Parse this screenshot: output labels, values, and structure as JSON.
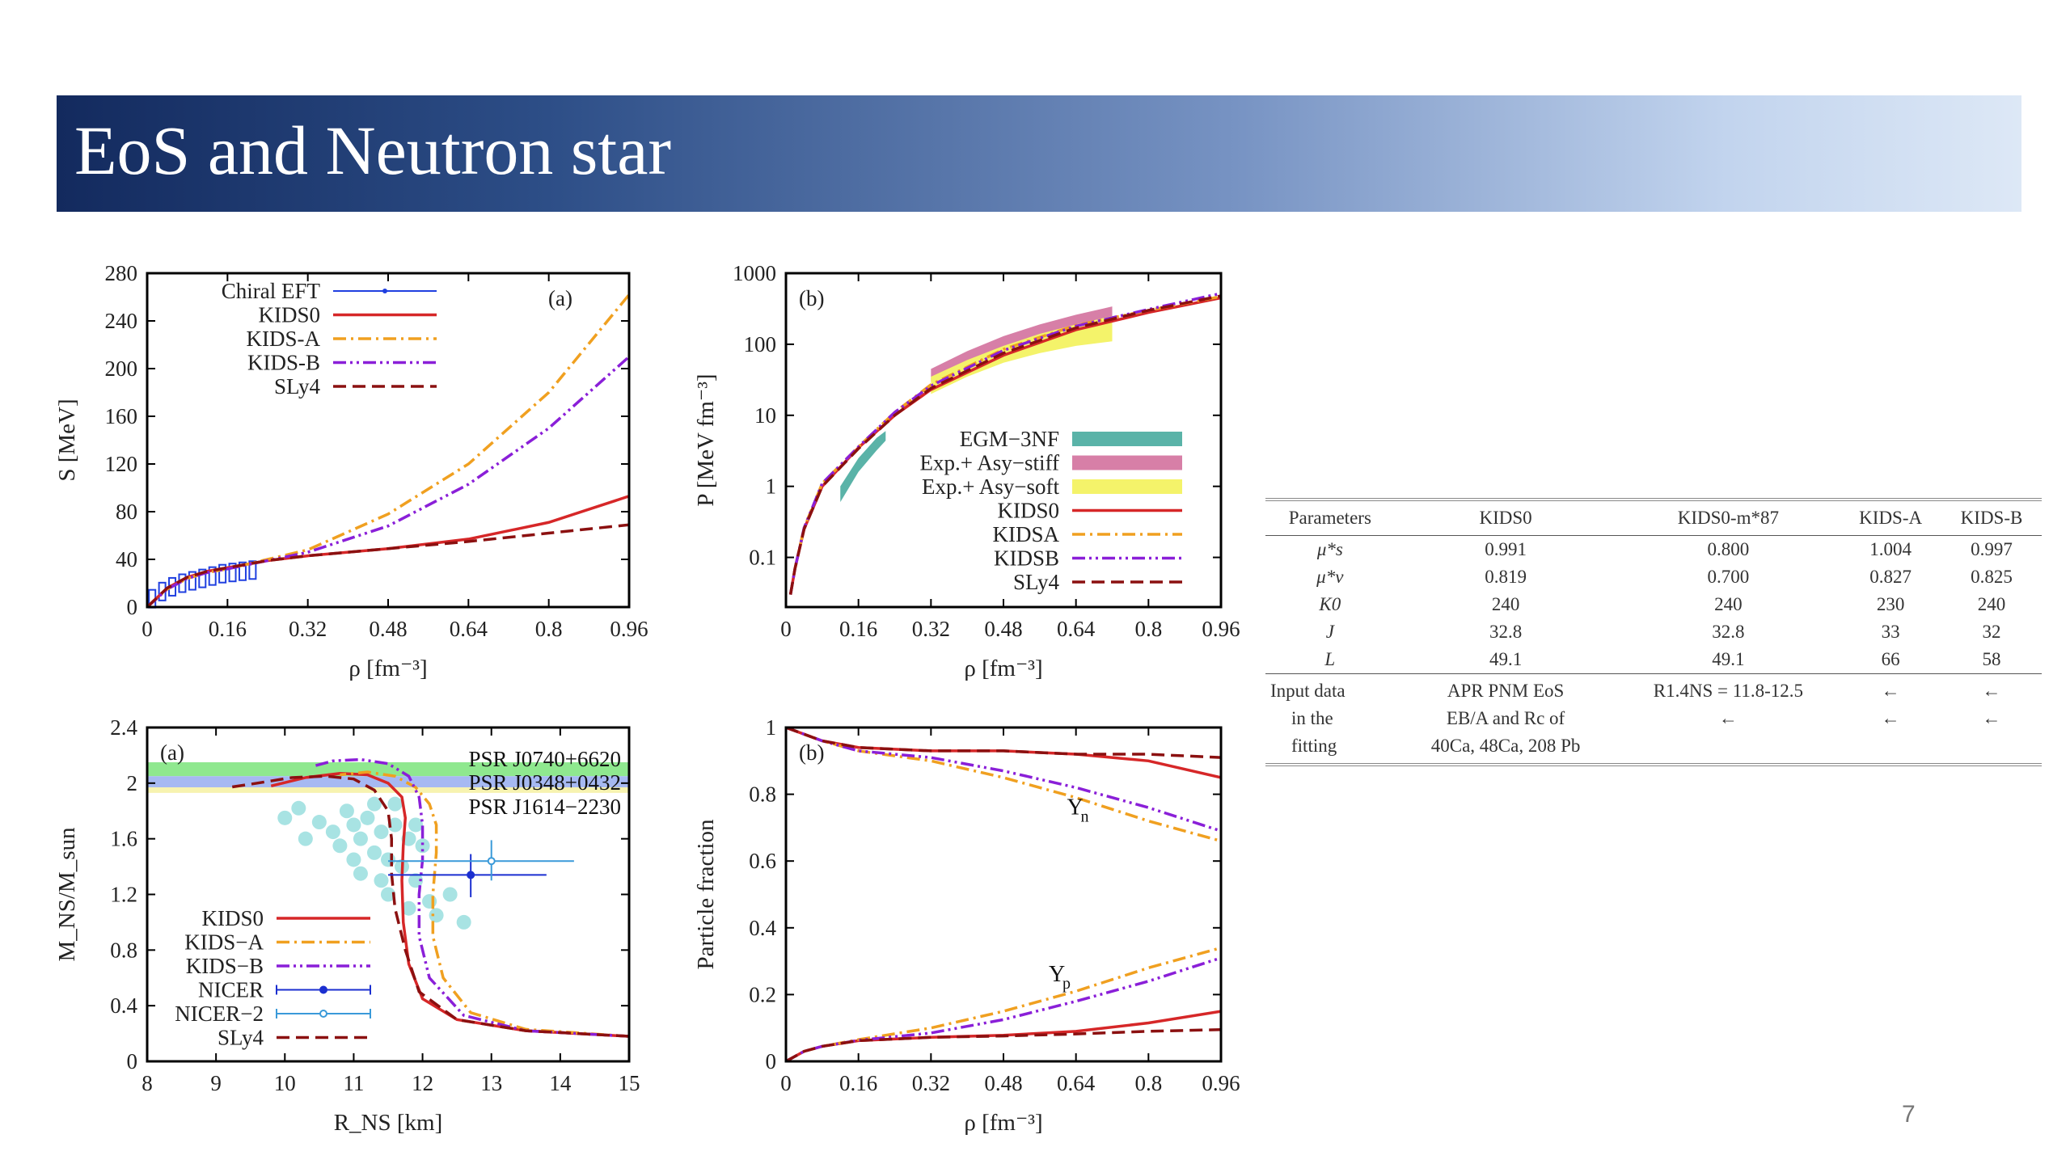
{
  "slide": {
    "title": "EoS and Neutron star",
    "page_number": "7"
  },
  "chart_data": [
    {
      "id": "symmetry-energy",
      "type": "line",
      "panel_label": "(a)",
      "xlabel": "ρ [fm⁻³]",
      "ylabel": "S [MeV]",
      "xlim": [
        0,
        0.96
      ],
      "ylim": [
        0,
        280
      ],
      "xticks": [
        0,
        0.16,
        0.32,
        0.48,
        0.64,
        0.8,
        0.96
      ],
      "yticks": [
        0,
        40,
        80,
        120,
        160,
        200,
        240,
        280
      ],
      "legend_position": "top-left",
      "series": [
        {
          "name": "Chiral EFT",
          "style": "band",
          "color": "#1f3fe0",
          "x": [
            0.01,
            0.03,
            0.05,
            0.07,
            0.09,
            0.11,
            0.13,
            0.15,
            0.17,
            0.19,
            0.21
          ],
          "y": [
            7,
            13,
            17,
            20,
            22,
            24,
            26,
            28,
            29,
            30,
            31
          ]
        },
        {
          "name": "KIDS0",
          "style": "solid",
          "color": "#d62728",
          "x": [
            0,
            0.04,
            0.08,
            0.12,
            0.16,
            0.24,
            0.32,
            0.48,
            0.64,
            0.8,
            0.96
          ],
          "y": [
            0,
            16,
            25,
            30,
            33,
            39,
            43,
            49,
            57,
            71,
            93
          ]
        },
        {
          "name": "KIDS-A",
          "style": "dashdot",
          "color": "#f0a020",
          "x": [
            0,
            0.04,
            0.08,
            0.12,
            0.16,
            0.24,
            0.32,
            0.48,
            0.64,
            0.8,
            0.96
          ],
          "y": [
            0,
            15,
            24,
            29,
            32,
            40,
            48,
            78,
            120,
            180,
            262
          ]
        },
        {
          "name": "KIDS-B",
          "style": "dashdotdot",
          "color": "#8a1fd8",
          "x": [
            0,
            0.04,
            0.08,
            0.12,
            0.16,
            0.24,
            0.32,
            0.48,
            0.64,
            0.8,
            0.96
          ],
          "y": [
            0,
            15,
            24,
            29,
            32,
            39,
            46,
            68,
            103,
            150,
            210
          ]
        },
        {
          "name": "SLy4",
          "style": "dashed",
          "color": "#8b1010",
          "x": [
            0,
            0.04,
            0.08,
            0.12,
            0.16,
            0.24,
            0.32,
            0.48,
            0.64,
            0.8,
            0.96
          ],
          "y": [
            0,
            16,
            25,
            30,
            33,
            39,
            43,
            49,
            55,
            62,
            69
          ]
        }
      ]
    },
    {
      "id": "pressure",
      "type": "line",
      "panel_label": "(b)",
      "xlabel": "ρ [fm⁻³]",
      "ylabel": "P [MeV fm⁻³]",
      "xlim": [
        0,
        0.96
      ],
      "ylim": [
        0.02,
        1000
      ],
      "yscale": "log",
      "xticks": [
        0,
        0.16,
        0.32,
        0.48,
        0.64,
        0.8,
        0.96
      ],
      "yticks": [
        0.1,
        1,
        10,
        100,
        1000
      ],
      "legend_position": "center-right",
      "bands": [
        {
          "name": "EGM−3NF",
          "color": "#5ab3a8",
          "x": [
            0.12,
            0.16,
            0.2,
            0.22
          ],
          "low": [
            0.6,
            1.6,
            3.2,
            4.4
          ],
          "high": [
            1.0,
            2.5,
            4.8,
            6.0
          ]
        },
        {
          "name": "Exp.+ Asy−stiff",
          "color": "#d77fa7",
          "x": [
            0.32,
            0.4,
            0.48,
            0.56,
            0.64,
            0.72
          ],
          "low": [
            30,
            55,
            90,
            130,
            180,
            230
          ],
          "high": [
            45,
            80,
            130,
            190,
            260,
            340
          ]
        },
        {
          "name": "Exp.+ Asy−soft",
          "color": "#f4f36a",
          "x": [
            0.32,
            0.4,
            0.48,
            0.56,
            0.64,
            0.72
          ],
          "low": [
            20,
            35,
            55,
            75,
            95,
            110
          ],
          "high": [
            35,
            60,
            95,
            140,
            190,
            250
          ]
        }
      ],
      "series": [
        {
          "name": "KIDS0",
          "style": "solid",
          "color": "#d62728",
          "x": [
            0.01,
            0.02,
            0.04,
            0.08,
            0.16,
            0.24,
            0.32,
            0.48,
            0.64,
            0.8,
            0.96
          ],
          "y": [
            0.03,
            0.07,
            0.25,
            1.0,
            3.5,
            10,
            23,
            70,
            160,
            280,
            450
          ]
        },
        {
          "name": "KIDSA",
          "style": "dashdot",
          "color": "#f0a020",
          "x": [
            0.01,
            0.02,
            0.04,
            0.08,
            0.16,
            0.24,
            0.32,
            0.48,
            0.64,
            0.8,
            0.96
          ],
          "y": [
            0.03,
            0.07,
            0.26,
            1.1,
            3.6,
            11,
            27,
            85,
            185,
            300,
            470
          ]
        },
        {
          "name": "KIDSB",
          "style": "dashdotdot",
          "color": "#8a1fd8",
          "x": [
            0.01,
            0.02,
            0.04,
            0.08,
            0.16,
            0.24,
            0.32,
            0.48,
            0.64,
            0.8,
            0.96
          ],
          "y": [
            0.03,
            0.07,
            0.26,
            1.1,
            3.6,
            11,
            26,
            82,
            180,
            310,
            520
          ]
        },
        {
          "name": "SLy4",
          "style": "dashed",
          "color": "#8b1010",
          "x": [
            0.01,
            0.02,
            0.04,
            0.08,
            0.16,
            0.24,
            0.32,
            0.48,
            0.64,
            0.8,
            0.96
          ],
          "y": [
            0.03,
            0.07,
            0.25,
            1.0,
            3.4,
            10,
            24,
            75,
            170,
            300,
            480
          ]
        }
      ]
    },
    {
      "id": "mass-radius",
      "type": "line",
      "panel_label": "(a)",
      "xlabel": "R_NS [km]",
      "ylabel": "M_NS/M_sun",
      "xlim": [
        8,
        15
      ],
      "ylim": [
        0,
        2.4
      ],
      "xticks": [
        8,
        9,
        10,
        11,
        12,
        13,
        14,
        15
      ],
      "yticks": [
        0,
        0.4,
        0.8,
        1.2,
        1.6,
        2,
        2.4
      ],
      "legend_position": "bottom-left",
      "constraints": [
        {
          "name": "PSR J0740+6620",
          "color": "#8fe88f",
          "low": 2.05,
          "high": 2.15
        },
        {
          "name": "PSR J0348+0432",
          "color": "#a6b9f2",
          "low": 1.97,
          "high": 2.05
        },
        {
          "name": "PSR J1614−2230",
          "color": "#f7f3b0",
          "low": 1.93,
          "high": 1.97
        }
      ],
      "scatter_points": {
        "color": "#a8e3e3",
        "x": [
          10.0,
          10.2,
          10.3,
          10.5,
          10.7,
          10.8,
          10.9,
          11.0,
          11.0,
          11.1,
          11.1,
          11.2,
          11.3,
          11.4,
          11.4,
          11.5,
          11.5,
          11.6,
          11.7,
          11.8,
          11.8,
          11.9,
          12.0,
          12.1,
          12.2,
          12.4,
          12.6,
          11.3,
          11.6,
          11.9
        ],
        "y": [
          1.75,
          1.82,
          1.6,
          1.72,
          1.65,
          1.55,
          1.8,
          1.7,
          1.45,
          1.6,
          1.35,
          1.75,
          1.5,
          1.3,
          1.65,
          1.45,
          1.2,
          1.7,
          1.4,
          1.1,
          1.6,
          1.3,
          1.55,
          1.15,
          1.05,
          1.2,
          1.0,
          1.85,
          1.85,
          1.7
        ]
      },
      "error_points": [
        {
          "name": "NICER",
          "color": "#1b2fd0",
          "x": 12.7,
          "y": 1.34,
          "xerr": [
            1.2,
            1.1
          ],
          "yerr": [
            0.16,
            0.15
          ]
        },
        {
          "name": "NICER−2",
          "color": "#3a9ad9",
          "x": 13.0,
          "y": 1.44,
          "xerr": [
            1.5,
            1.2
          ],
          "yerr": [
            0.14,
            0.15
          ]
        }
      ],
      "series": [
        {
          "name": "KIDS0",
          "style": "solid",
          "color": "#d62728",
          "x": [
            15,
            13.5,
            12.5,
            12.0,
            11.8,
            11.72,
            11.7,
            11.72,
            11.75,
            11.7,
            11.5,
            11.2,
            10.8,
            10.3,
            9.8
          ],
          "y": [
            0.18,
            0.22,
            0.3,
            0.45,
            0.7,
            1.0,
            1.3,
            1.55,
            1.75,
            1.9,
            2.0,
            2.06,
            2.07,
            2.04,
            1.98
          ]
        },
        {
          "name": "KIDS−A",
          "style": "dashdot",
          "color": "#f0a020",
          "x": [
            15,
            13.5,
            12.7,
            12.3,
            12.15,
            12.15,
            12.2,
            12.2,
            12.1,
            11.9,
            11.6,
            11.2,
            10.8
          ],
          "y": [
            0.18,
            0.23,
            0.35,
            0.6,
            0.9,
            1.2,
            1.5,
            1.7,
            1.85,
            1.97,
            2.05,
            2.08,
            2.06
          ]
        },
        {
          "name": "KIDS−B",
          "style": "dashdotdot",
          "color": "#8a1fd8",
          "x": [
            15,
            13.5,
            12.6,
            12.1,
            11.95,
            11.95,
            12.0,
            12.0,
            11.95,
            11.8,
            11.5,
            11.1,
            10.7,
            10.4
          ],
          "y": [
            0.18,
            0.22,
            0.33,
            0.6,
            0.9,
            1.2,
            1.45,
            1.7,
            1.9,
            2.05,
            2.14,
            2.17,
            2.16,
            2.12
          ]
        },
        {
          "name": "SLy4",
          "style": "dashed",
          "color": "#8b1010",
          "x": [
            15,
            13.5,
            12.5,
            11.95,
            11.75,
            11.6,
            11.55,
            11.55,
            11.5,
            11.3,
            11.0,
            10.6,
            10.1,
            9.6,
            9.2
          ],
          "y": [
            0.18,
            0.22,
            0.3,
            0.5,
            0.8,
            1.1,
            1.35,
            1.6,
            1.8,
            1.95,
            2.03,
            2.05,
            2.04,
            2.0,
            1.97
          ]
        }
      ]
    },
    {
      "id": "particle-fraction",
      "type": "line",
      "panel_label": "(b)",
      "xlabel": "ρ [fm⁻³]",
      "ylabel": "Particle fraction",
      "xlim": [
        0,
        0.96
      ],
      "ylim": [
        0,
        1
      ],
      "xticks": [
        0,
        0.16,
        0.32,
        0.48,
        0.64,
        0.8,
        0.96
      ],
      "yticks": [
        0,
        0.2,
        0.4,
        0.6,
        0.8,
        1
      ],
      "annotations": {
        "yn": "Y",
        "yn_sub": "n",
        "yp": "Y",
        "yp_sub": "p"
      },
      "series": [
        {
          "name": "KIDS0 Yn",
          "style": "solid",
          "color": "#d62728",
          "x": [
            0,
            0.08,
            0.16,
            0.32,
            0.48,
            0.64,
            0.8,
            0.96
          ],
          "y": [
            1.0,
            0.96,
            0.94,
            0.93,
            0.93,
            0.92,
            0.9,
            0.85
          ]
        },
        {
          "name": "KIDS-A Yn",
          "style": "dashdot",
          "color": "#f0a020",
          "x": [
            0,
            0.08,
            0.16,
            0.32,
            0.48,
            0.64,
            0.8,
            0.96
          ],
          "y": [
            1.0,
            0.96,
            0.93,
            0.9,
            0.85,
            0.79,
            0.72,
            0.66
          ]
        },
        {
          "name": "KIDS-B Yn",
          "style": "dashdotdot",
          "color": "#8a1fd8",
          "x": [
            0,
            0.08,
            0.16,
            0.32,
            0.48,
            0.64,
            0.8,
            0.96
          ],
          "y": [
            1.0,
            0.96,
            0.93,
            0.91,
            0.87,
            0.82,
            0.76,
            0.69
          ]
        },
        {
          "name": "SLy4 Yn",
          "style": "dashed",
          "color": "#8b1010",
          "x": [
            0,
            0.08,
            0.16,
            0.32,
            0.48,
            0.64,
            0.8,
            0.96
          ],
          "y": [
            1.0,
            0.96,
            0.94,
            0.93,
            0.93,
            0.92,
            0.92,
            0.91
          ]
        },
        {
          "name": "KIDS0 Yp",
          "style": "solid",
          "color": "#d62728",
          "x": [
            0,
            0.04,
            0.08,
            0.16,
            0.32,
            0.48,
            0.64,
            0.8,
            0.96
          ],
          "y": [
            0.0,
            0.03,
            0.045,
            0.062,
            0.072,
            0.078,
            0.09,
            0.115,
            0.15
          ]
        },
        {
          "name": "KIDS-A Yp",
          "style": "dashdot",
          "color": "#f0a020",
          "x": [
            0,
            0.04,
            0.08,
            0.16,
            0.32,
            0.48,
            0.64,
            0.8,
            0.96
          ],
          "y": [
            0.0,
            0.03,
            0.045,
            0.065,
            0.1,
            0.15,
            0.21,
            0.28,
            0.34
          ]
        },
        {
          "name": "KIDS-B Yp",
          "style": "dashdotdot",
          "color": "#8a1fd8",
          "x": [
            0,
            0.04,
            0.08,
            0.16,
            0.32,
            0.48,
            0.64,
            0.8,
            0.96
          ],
          "y": [
            0.0,
            0.03,
            0.045,
            0.063,
            0.085,
            0.125,
            0.18,
            0.24,
            0.31
          ]
        },
        {
          "name": "SLy4 Yp",
          "style": "dashed",
          "color": "#8b1010",
          "x": [
            0,
            0.04,
            0.08,
            0.16,
            0.32,
            0.48,
            0.64,
            0.8,
            0.96
          ],
          "y": [
            0.0,
            0.03,
            0.045,
            0.062,
            0.072,
            0.076,
            0.082,
            0.09,
            0.095
          ]
        }
      ]
    }
  ],
  "table": {
    "headers": [
      "Parameters",
      "KIDS0",
      "KIDS0-m*87",
      "KIDS-A",
      "KIDS-B"
    ],
    "rows": [
      {
        "p": "μ*s",
        "v": [
          "0.991",
          "0.800",
          "1.004",
          "0.997"
        ]
      },
      {
        "p": "μ*v",
        "v": [
          "0.819",
          "0.700",
          "0.827",
          "0.825"
        ]
      },
      {
        "p": "K0",
        "v": [
          "240",
          "240",
          "230",
          "240"
        ]
      },
      {
        "p": "J",
        "v": [
          "32.8",
          "32.8",
          "33",
          "32"
        ]
      },
      {
        "p": "L",
        "v": [
          "49.1",
          "49.1",
          "66",
          "58"
        ]
      }
    ],
    "input_label": [
      "Input data",
      "in the",
      "fitting"
    ],
    "input_kids0": [
      "APR PNM EoS",
      "EB/A and Rc of",
      "40Ca, 48Ca, 208 Pb"
    ],
    "input_m87": [
      "R1.4NS = 11.8-12.5",
      "←"
    ],
    "arrow": "←"
  }
}
